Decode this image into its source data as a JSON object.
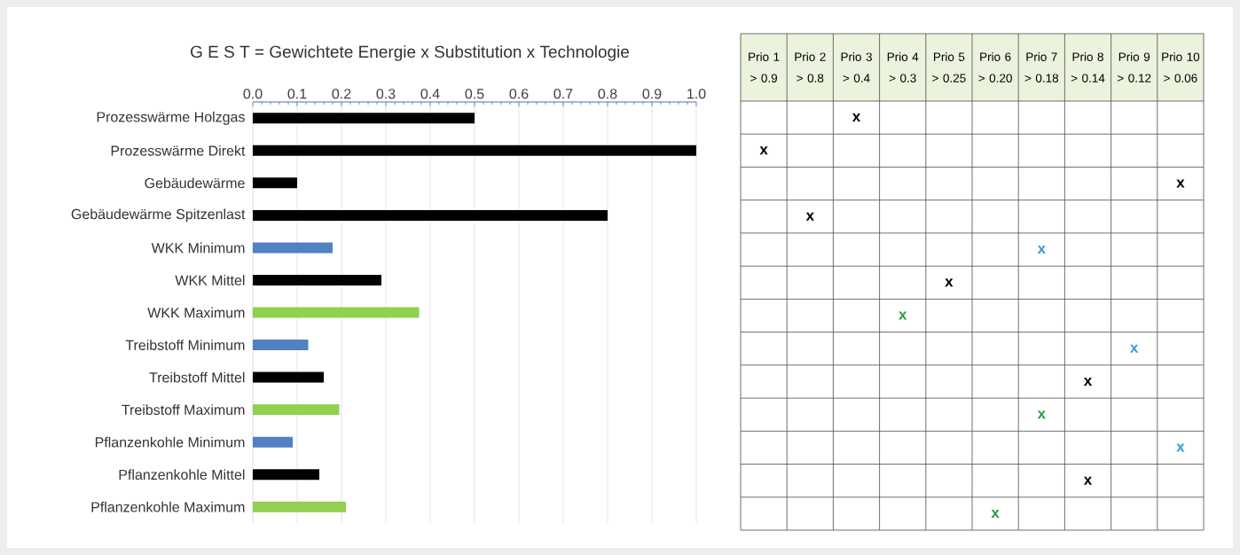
{
  "chart_data": [
    {
      "type": "bar",
      "orientation": "horizontal",
      "title": "G E S T = Gewichtete Energie x Substitution x Technologie",
      "categories": [
        "Prozesswärme Holzgas",
        "Prozesswärme Direkt",
        "Gebäudewärme",
        "Gebäudewärme Spitzenlast",
        "WKK Minimum",
        "WKK Mittel",
        "WKK Maximum",
        "Treibstoff Minimum",
        "Treibstoff Mittel",
        "Treibstoff Maximum",
        "Pflanzenkohle Minimum",
        "Pflanzenkohle Mittel",
        "Pflanzenkohle Maximum"
      ],
      "values": [
        0.5,
        1.0,
        0.1,
        0.8,
        0.18,
        0.29,
        0.375,
        0.125,
        0.16,
        0.195,
        0.09,
        0.15,
        0.21
      ],
      "colors": [
        "#000000",
        "#000000",
        "#000000",
        "#000000",
        "#4f81c3",
        "#000000",
        "#92d050",
        "#4f81c3",
        "#000000",
        "#92d050",
        "#4f81c3",
        "#000000",
        "#92d050"
      ],
      "xlim": [
        0,
        1
      ],
      "xticks": [
        {
          "value": 0,
          "label": "0.0"
        },
        0.1,
        0.2,
        0.3,
        0.4,
        0.5,
        0.6,
        0.7,
        0.8,
        0.9,
        {
          "value": 1,
          "label": "1.0"
        }
      ],
      "grid": "x"
    },
    {
      "type": "other",
      "categories": [
        null,
        null,
        null,
        null,
        null,
        null,
        null,
        null,
        null,
        null,
        null,
        null,
        null
      ],
      "annotations": [
        "Prio 1 > 0.9",
        "Prio 2 > 0.8",
        "Prio 3 > 0.4",
        "Prio 4 > 0.3",
        "Prio 5 > 0.25",
        "Prio 6 > 0.20",
        "Prio 7 > 0.18",
        "Prio 8 > 0.14",
        "Prio 9 > 0.12",
        "Prio 10 > 0.06"
      ],
      "cell_labels": [
        [
          null,
          null,
          "x",
          null,
          null,
          null,
          null,
          null,
          null,
          null
        ],
        [
          "x",
          null,
          null,
          null,
          null,
          null,
          null,
          null,
          null,
          null
        ],
        [
          null,
          null,
          null,
          null,
          null,
          null,
          null,
          null,
          null,
          "x"
        ],
        [
          null,
          "x",
          null,
          null,
          null,
          null,
          null,
          null,
          null,
          null
        ],
        [
          null,
          null,
          null,
          null,
          null,
          null,
          "x",
          null,
          null,
          null
        ],
        [
          null,
          null,
          null,
          null,
          "x",
          null,
          null,
          null,
          null,
          null
        ],
        [
          null,
          null,
          null,
          "x",
          null,
          null,
          null,
          null,
          null,
          null
        ],
        [
          null,
          null,
          null,
          null,
          null,
          null,
          null,
          null,
          "x",
          null
        ],
        [
          null,
          null,
          null,
          null,
          null,
          null,
          null,
          "x",
          null,
          null
        ],
        [
          null,
          null,
          null,
          null,
          null,
          null,
          "x",
          null,
          null,
          null
        ],
        [
          null,
          null,
          null,
          null,
          null,
          null,
          null,
          null,
          null,
          "x"
        ],
        [
          null,
          null,
          null,
          null,
          null,
          null,
          null,
          "x",
          null,
          null
        ],
        [
          null,
          null,
          null,
          null,
          null,
          "x",
          null,
          null,
          null,
          null
        ]
      ],
      "colors": [
        "#000000",
        "#000000",
        "#000000",
        "#000000",
        "#3a9ad9",
        "#000000",
        "#2e9e3e",
        "#3a9ad9",
        "#000000",
        "#2e9e3e",
        "#3a9ad9",
        "#000000",
        "#2e9e3e"
      ]
    }
  ]
}
